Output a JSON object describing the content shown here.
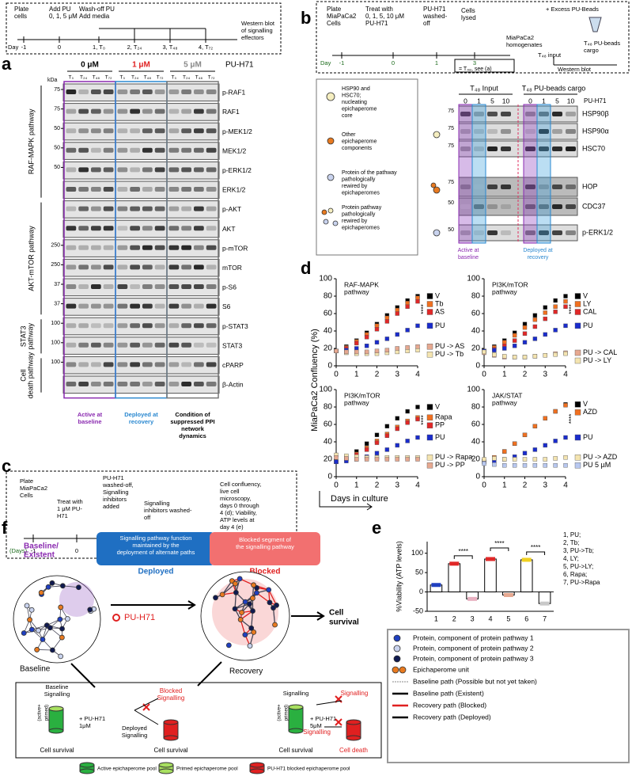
{
  "panel_letters": [
    "a",
    "b",
    "c",
    "d",
    "e",
    "f"
  ],
  "panel_a": {
    "timeline": {
      "steps": [
        [
          "Plate",
          "cells"
        ],
        [
          "Add PU",
          "0, 1, 5 μM"
        ],
        [
          "Wash-off PU",
          "Add media"
        ],
        [
          "Western blot",
          "of signalling",
          "effectors"
        ]
      ],
      "day": "Day",
      "days": [
        "-1",
        "0",
        "1, T₀",
        "2, T₂₄",
        "3, T₄₈",
        "4, T₇₂"
      ]
    },
    "doses": [
      "0 μM",
      "1 μM",
      "5 μM"
    ],
    "drug": "PU-H71",
    "lanes": [
      "T₀",
      "T₂₄",
      "T₄₈",
      "T₇₂"
    ],
    "kda": "kDa",
    "rows": [
      {
        "label": "p-RAF1",
        "kda": [
          "75"
        ]
      },
      {
        "label": "RAF1",
        "kda": [
          "75"
        ]
      },
      {
        "label": "p-MEK1/2",
        "kda": [
          "50"
        ]
      },
      {
        "label": "MEK1/2",
        "kda": [
          "50"
        ]
      },
      {
        "label": "p-ERK1/2",
        "kda": [
          "50"
        ]
      },
      {
        "label": "ERK1/2",
        "kda": []
      },
      {
        "label": "p-AKT",
        "kda": []
      },
      {
        "label": "AKT",
        "kda": []
      },
      {
        "label": "p-mTOR",
        "kda": [
          "250"
        ]
      },
      {
        "label": "mTOR",
        "kda": [
          "250"
        ]
      },
      {
        "label": "p-S6",
        "kda": [
          "37"
        ]
      },
      {
        "label": "S6",
        "kda": [
          "37"
        ]
      },
      {
        "label": "p-STAT3",
        "kda": [
          "100"
        ]
      },
      {
        "label": "STAT3",
        "kda": [
          "100"
        ]
      },
      {
        "label": "cPARP",
        "kda": [
          "100"
        ]
      },
      {
        "label": "β-Actin",
        "kda": []
      }
    ],
    "pathways": [
      "RAF-MAPK pathway",
      "AKT-mTOR pathway",
      [
        "STAT3",
        "pathway"
      ],
      [
        "Cell",
        "death pathway"
      ]
    ],
    "footers": [
      [
        "Active at",
        "baseline"
      ],
      [
        "Deployed at",
        "recovery"
      ],
      [
        "Condition of",
        "suppressed PPI",
        "network",
        "dynamics"
      ]
    ]
  },
  "panel_b": {
    "timeline": {
      "steps": [
        [
          "Plate",
          "MiaPaCa2",
          "Cells"
        ],
        [
          "Treat with",
          "0, 1, 5, 10 μM",
          "PU-H71"
        ],
        [
          "PU-H71",
          "washed-",
          "off"
        ],
        [
          "Cells",
          "lysed"
        ]
      ],
      "beads": "+ Excess PU-Beads",
      "homogenates": [
        "MiaPaCa2",
        "homogenates"
      ],
      "cargo": [
        "T₄₈ PU-beads",
        "cargo"
      ],
      "input": "T₄₈ input",
      "western": "Western blot",
      "day": "Day",
      "days": [
        "-1",
        "0",
        "1",
        "3"
      ],
      "note": "= T₄₈, see (a)"
    },
    "legend": [
      [
        "HSP90 and",
        "HSC70;",
        "nucleating",
        "epichaperome",
        "core"
      ],
      [
        "Other",
        "epichaperome",
        "components"
      ],
      [
        "Protein of the pathway",
        "pathologically",
        "rewired by",
        "epichaperomes"
      ],
      [
        "Protein pathway",
        "pathologically",
        "rewired by",
        "epichaperomes"
      ]
    ],
    "groups": [
      "T₄₈ Input",
      "T₄₈ PU-beads cargo"
    ],
    "doses": [
      "0",
      "1",
      "5",
      "10",
      "0",
      "1",
      "5",
      "10"
    ],
    "drug": "PU-H71",
    "rows": [
      {
        "label": "HSP90β",
        "kda": "75"
      },
      {
        "label": "HSP90α",
        "kda": "75"
      },
      {
        "label": "HSC70",
        "kda": "75"
      },
      {
        "label": "HOP",
        "kda": "75"
      },
      {
        "label": "CDC37",
        "kda": "50"
      },
      {
        "label": "p-ERK1/2",
        "kda": "50"
      }
    ],
    "footers": [
      [
        "Active at",
        "baseline"
      ],
      [
        "Deployed at",
        "recovery"
      ]
    ]
  },
  "panel_c": {
    "steps": [
      [
        "Plate",
        "MiaPaCa2",
        "Cells"
      ],
      [
        "Treat with",
        "1 μM PU-",
        "H71"
      ],
      [
        "PU-H71",
        "washed-off,",
        "Signalling",
        "inhibitors",
        "added"
      ],
      [
        "Signalling",
        "inhibitors washed-",
        "off"
      ],
      [
        "Cell confluency,",
        "live cell",
        "microscopy,",
        "days 0 through",
        "4 (d); Viability,",
        "ATP levels at",
        "day 4 (e)"
      ]
    ],
    "day": "(Days)",
    "days": [
      "-1",
      "0",
      "1",
      "2",
      "4"
    ]
  },
  "panel_d": {
    "y_label": "MiaPaCa2 Confluency (%)",
    "x_label": "Days in culture"
  },
  "panel_e_legend": [
    "Protein, component of protein pathway  1",
    "Protein, component of protein pathway  2",
    "Protein, component of protein pathway 3",
    "Epichaperome unit",
    "Baseline path (Possible but not yet taken)",
    "Baseline path (Existent)",
    "Recovery path (Blocked)",
    "Recovery path (Deployed)"
  ],
  "panel_f": {
    "baseline_title": [
      "Baseline/",
      "Existent"
    ],
    "drug": "PU-H71",
    "deployed_box": [
      "Signalling pathway function",
      "maintained by the",
      "deployment of alternate paths"
    ],
    "deployed": "Deployed",
    "blocked_box": [
      "Blocked segment of",
      "the signalling pathway"
    ],
    "blocked": "Blocked",
    "cell_survival": [
      "Cell",
      "survival"
    ],
    "baseline": "Baseline",
    "recovery": "Recovery",
    "low": {
      "baseline": [
        "Baseline",
        "Signalling"
      ],
      "primed": [
        "(active+",
        "primed)"
      ],
      "dose": [
        "+ PU-H71",
        "1μM"
      ],
      "blocked": [
        "Blocked",
        "Signalling"
      ],
      "deployed": [
        "Deployed",
        "Signalling"
      ],
      "survival1": "Cell survival",
      "survival2": "Cell survival"
    },
    "high": {
      "signalling": "Signalling",
      "primed": [
        "(active+",
        "primed)"
      ],
      "dose": [
        "+ PU-H71",
        "5μM"
      ],
      "sig_a": "Signalling",
      "sig_b": "Signalling",
      "survival": "Cell survival",
      "death": "Cell death"
    },
    "pools": [
      "Active epichaperome pool",
      "Primed epichaperome pool",
      "PU-H71 blocked epichaperome pool"
    ]
  },
  "chart_data": [
    {
      "type": "line",
      "title": [
        "RAF-MAPK",
        "pathway"
      ],
      "x": [
        0,
        0.5,
        1,
        1.5,
        2,
        2.5,
        3,
        3.5,
        4
      ],
      "xlim": [
        0,
        4
      ],
      "xticks": [
        0,
        1,
        2,
        3,
        4
      ],
      "ylim": [
        0,
        100
      ],
      "yticks": [
        0,
        20,
        40,
        60,
        80,
        100
      ],
      "annotation": "****",
      "series": [
        {
          "name": "V",
          "color": "#000000",
          "values": [
            17,
            22,
            29,
            38,
            48,
            58,
            67,
            75,
            80
          ]
        },
        {
          "name": "Tb",
          "color": "#f07020",
          "values": [
            17,
            21,
            28,
            36,
            46,
            55,
            64,
            72,
            78
          ]
        },
        {
          "name": "AS",
          "color": "#e02828",
          "values": [
            17,
            20,
            26,
            33,
            42,
            51,
            60,
            68,
            74
          ]
        },
        {
          "name": "PU",
          "color": "#1a2ccc",
          "values": [
            17,
            18,
            20,
            23,
            27,
            31,
            36,
            41,
            46
          ]
        },
        {
          "name": "PU -> Tb",
          "color": "#f4e4b0",
          "values": [
            17,
            15,
            14,
            14,
            14,
            15,
            16,
            17,
            18
          ]
        },
        {
          "name": "PU -> AS",
          "color": "#e6a890",
          "values": [
            17,
            16,
            16,
            16,
            17,
            18,
            20,
            21,
            22
          ]
        }
      ]
    },
    {
      "type": "line",
      "title": [
        "PI3K/mTOR",
        "pathway"
      ],
      "x": [
        0,
        0.5,
        1,
        1.5,
        2,
        2.5,
        3,
        3.5,
        4
      ],
      "xlim": [
        0,
        4
      ],
      "xticks": [
        0,
        1,
        2,
        3,
        4
      ],
      "ylim": [
        0,
        100
      ],
      "yticks": [
        0,
        20,
        40,
        60,
        80,
        100
      ],
      "annotation": "****",
      "series": [
        {
          "name": "V",
          "color": "#000000",
          "values": [
            17,
            22,
            29,
            38,
            48,
            58,
            67,
            75,
            80
          ]
        },
        {
          "name": "LY",
          "color": "#f07020",
          "values": [
            17,
            21,
            27,
            35,
            44,
            53,
            61,
            68,
            74
          ]
        },
        {
          "name": "CAL",
          "color": "#e02828",
          "values": [
            17,
            19,
            23,
            29,
            37,
            45,
            54,
            62,
            68
          ]
        },
        {
          "name": "PU",
          "color": "#1a2ccc",
          "values": [
            17,
            18,
            20,
            23,
            27,
            31,
            36,
            41,
            46
          ]
        },
        {
          "name": "PU -> CAL",
          "color": "#e6a890",
          "values": [
            15,
            12,
            10,
            10,
            10,
            11,
            12,
            14,
            15
          ]
        },
        {
          "name": "PU -> LY",
          "color": "#f4e4b0",
          "values": [
            16,
            13,
            11,
            10,
            10,
            11,
            12,
            13,
            14
          ]
        }
      ]
    },
    {
      "type": "line",
      "title": [
        "PI3K/mTOR",
        "pathway"
      ],
      "x": [
        0,
        0.5,
        1,
        1.5,
        2,
        2.5,
        3,
        3.5,
        4
      ],
      "xlim": [
        0,
        4
      ],
      "xticks": [
        0,
        1,
        2,
        3,
        4
      ],
      "ylim": [
        0,
        100
      ],
      "yticks": [
        0,
        20,
        40,
        60,
        80,
        100
      ],
      "annotation": "****",
      "series": [
        {
          "name": "V",
          "color": "#000000",
          "values": [
            17,
            22,
            29,
            38,
            48,
            58,
            67,
            75,
            80
          ]
        },
        {
          "name": "Rapa",
          "color": "#f07020",
          "values": [
            17,
            20,
            26,
            33,
            41,
            49,
            57,
            64,
            68
          ]
        },
        {
          "name": "PP",
          "color": "#e02828",
          "values": [
            17,
            20,
            25,
            31,
            39,
            47,
            55,
            62,
            66
          ]
        },
        {
          "name": "PU",
          "color": "#1a2ccc",
          "values": [
            17,
            18,
            20,
            23,
            27,
            31,
            36,
            41,
            45
          ]
        },
        {
          "name": "PU -> Rapa",
          "color": "#f4e4b0",
          "values": [
            25,
            24,
            23,
            22,
            22,
            22,
            22,
            22,
            22
          ]
        },
        {
          "name": "PU -> PP",
          "color": "#e6a890",
          "values": [
            22,
            21,
            20,
            20,
            20,
            20,
            20,
            20,
            20
          ]
        }
      ]
    },
    {
      "type": "line",
      "title": [
        "JAK/STAT",
        "pathway"
      ],
      "x": [
        0,
        0.5,
        1,
        1.5,
        2,
        2.5,
        3,
        3.5,
        4
      ],
      "xlim": [
        0,
        4
      ],
      "xticks": [
        0,
        1,
        2,
        3,
        4
      ],
      "ylim": [
        0,
        100
      ],
      "yticks": [
        0,
        20,
        40,
        60,
        80,
        100
      ],
      "annotation": "****",
      "series": [
        {
          "name": "V",
          "color": "#000000",
          "values": [
            17,
            22,
            29,
            38,
            48,
            58,
            67,
            75,
            83
          ]
        },
        {
          "name": "AZD",
          "color": "#f07020",
          "values": [
            17,
            22,
            29,
            38,
            48,
            58,
            67,
            75,
            82
          ]
        },
        {
          "name": "PU",
          "color": "#1a2ccc",
          "values": [
            17,
            18,
            20,
            23,
            27,
            31,
            36,
            41,
            45
          ]
        },
        {
          "name": "PU -> AZD",
          "color": "#f4e4b0",
          "values": [
            20,
            21,
            20,
            20,
            20,
            20,
            20,
            21,
            22
          ]
        },
        {
          "name": "PU 5 µM",
          "color": "#b8c8f0",
          "values": [
            15,
            14,
            13,
            13,
            13,
            13,
            13,
            13,
            13
          ]
        }
      ]
    },
    {
      "type": "bar",
      "y_label": "%Viability (ATP levels)",
      "categories": [
        "1",
        "2",
        "3",
        "4",
        "5",
        "6",
        "7"
      ],
      "values": [
        18,
        73,
        -18,
        85,
        -8,
        83,
        -30
      ],
      "colors": [
        "#2040c0",
        "#e02828",
        "#e8b0c0",
        "#e02828",
        "#e6a890",
        "#f0d020",
        "#c8c8c8"
      ],
      "ylim": [
        -50,
        130
      ],
      "yticks": [
        -50,
        0,
        50,
        100
      ],
      "annotations": [
        "****",
        "****",
        "****"
      ],
      "legend_text": [
        "1, PU;",
        "2, Tb;",
        "3, PU->Tb;",
        "4, LY;",
        "5, PU->LY;",
        "6, Rapa;",
        "7, PU->Rapa"
      ]
    }
  ]
}
